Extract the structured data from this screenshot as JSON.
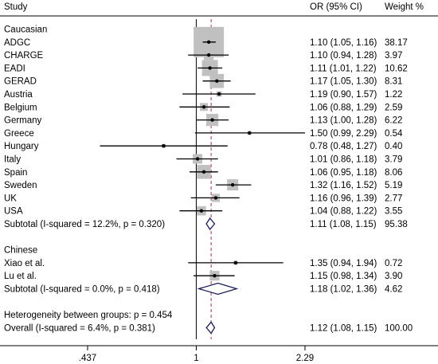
{
  "header": {
    "study": "Study",
    "or_ci": "OR (95% CI)",
    "weight": "Weight %"
  },
  "chart_data": {
    "type": "forest",
    "x_scale": "log",
    "xlim": [
      0.437,
      2.29
    ],
    "xticks": [
      {
        "value": 0.437,
        "label": ".437"
      },
      {
        "value": 1,
        "label": "1"
      },
      {
        "value": 2.29,
        "label": "2.29"
      }
    ],
    "null_line": 1,
    "overall_line": 1.12,
    "groups": [
      {
        "name": "Caucasian",
        "studies": [
          {
            "study": "ADGC",
            "or": 1.1,
            "lo": 1.05,
            "hi": 1.16,
            "ci_text": "1.10 (1.05, 1.16)",
            "weight": "38.17"
          },
          {
            "study": "CHARGE",
            "or": 1.1,
            "lo": 0.94,
            "hi": 1.28,
            "ci_text": "1.10 (0.94, 1.28)",
            "weight": "3.97"
          },
          {
            "study": "EADI",
            "or": 1.11,
            "lo": 1.01,
            "hi": 1.22,
            "ci_text": "1.11 (1.01, 1.22)",
            "weight": "10.62"
          },
          {
            "study": "GERAD",
            "or": 1.17,
            "lo": 1.05,
            "hi": 1.3,
            "ci_text": "1.17 (1.05, 1.30)",
            "weight": "8.31"
          },
          {
            "study": "Austria",
            "or": 1.19,
            "lo": 0.9,
            "hi": 1.57,
            "ci_text": "1.19 (0.90, 1.57)",
            "weight": "1.22"
          },
          {
            "study": "Belgium",
            "or": 1.06,
            "lo": 0.88,
            "hi": 1.29,
            "ci_text": "1.06 (0.88, 1.29)",
            "weight": "2.59"
          },
          {
            "study": "Germany",
            "or": 1.13,
            "lo": 1.0,
            "hi": 1.28,
            "ci_text": "1.13 (1.00, 1.28)",
            "weight": "6.22"
          },
          {
            "study": "Greece",
            "or": 1.5,
            "lo": 0.99,
            "hi": 2.29,
            "ci_text": "1.50 (0.99, 2.29)",
            "weight": "0.54"
          },
          {
            "study": "Hungary",
            "or": 0.78,
            "lo": 0.48,
            "hi": 1.27,
            "ci_text": "0.78 (0.48, 1.27)",
            "weight": "0.40"
          },
          {
            "study": "Italy",
            "or": 1.01,
            "lo": 0.86,
            "hi": 1.18,
            "ci_text": "1.01 (0.86, 1.18)",
            "weight": "3.79"
          },
          {
            "study": "Spain",
            "or": 1.06,
            "lo": 0.95,
            "hi": 1.18,
            "ci_text": "1.06 (0.95, 1.18)",
            "weight": "8.06"
          },
          {
            "study": "Sweden",
            "or": 1.32,
            "lo": 1.16,
            "hi": 1.52,
            "ci_text": "1.32 (1.16, 1.52)",
            "weight": "5.19"
          },
          {
            "study": "UK",
            "or": 1.16,
            "lo": 0.96,
            "hi": 1.39,
            "ci_text": "1.16 (0.96, 1.39)",
            "weight": "2.77"
          },
          {
            "study": "USA",
            "or": 1.04,
            "lo": 0.88,
            "hi": 1.22,
            "ci_text": "1.04 (0.88, 1.22)",
            "weight": "3.55"
          }
        ],
        "subtotal": {
          "label": "Subtotal  (I-squared = 12.2%, p = 0.320)",
          "or": 1.11,
          "lo": 1.08,
          "hi": 1.15,
          "ci_text": "1.11 (1.08, 1.15)",
          "weight": "95.38"
        }
      },
      {
        "name": "Chinese",
        "studies": [
          {
            "study": "Xiao et al.",
            "or": 1.35,
            "lo": 0.94,
            "hi": 1.94,
            "ci_text": "1.35 (0.94, 1.94)",
            "weight": "0.72"
          },
          {
            "study": "Lu et al.",
            "or": 1.15,
            "lo": 0.98,
            "hi": 1.34,
            "ci_text": "1.15 (0.98, 1.34)",
            "weight": "3.90"
          }
        ],
        "subtotal": {
          "label": "Subtotal  (I-squared = 0.0%, p = 0.418)",
          "or": 1.18,
          "lo": 1.02,
          "hi": 1.36,
          "ci_text": "1.18 (1.02, 1.36)",
          "weight": "4.62"
        }
      }
    ],
    "heterogeneity": "Heterogeneity between groups: p = 0.454",
    "overall": {
      "label": "Overall  (I-squared = 6.4%, p = 0.381)",
      "or": 1.12,
      "lo": 1.08,
      "hi": 1.15,
      "ci_text": "1.12 (1.08, 1.15)",
      "weight": "100.00"
    },
    "colors": {
      "box": "#c0c0c0",
      "diamond": "#1a1a5e",
      "overall_line": "#b03040",
      "line": "#000000"
    }
  }
}
